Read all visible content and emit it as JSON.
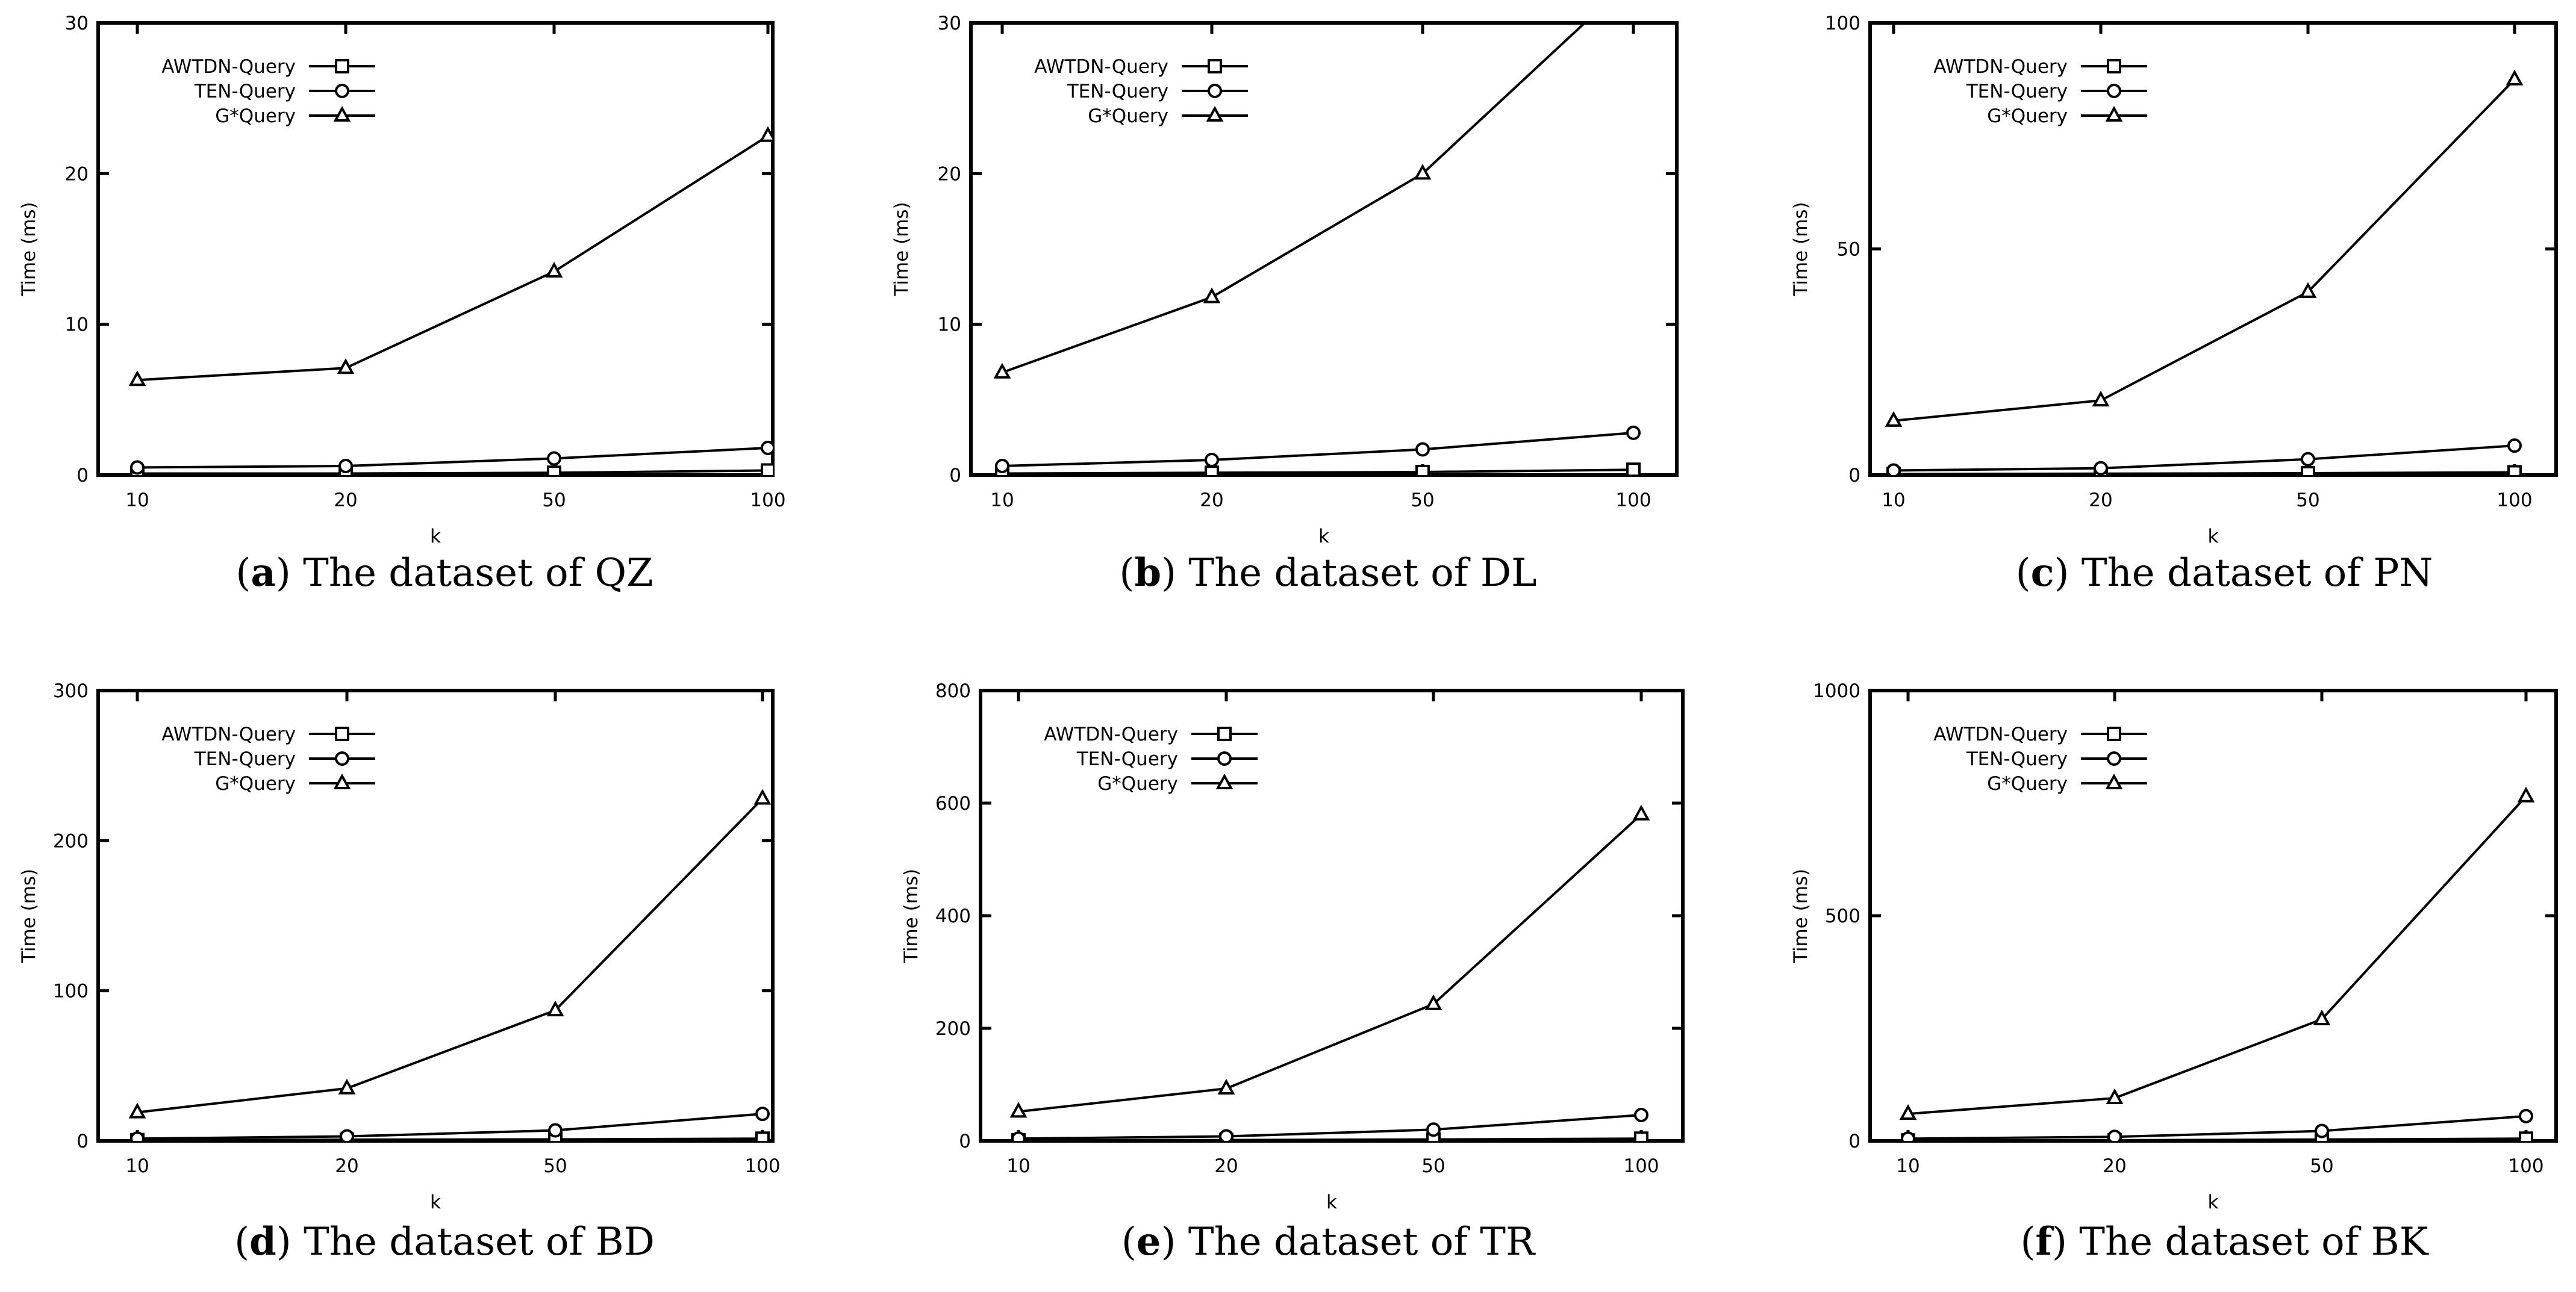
{
  "chart_data": [
    {
      "type": "line",
      "caption_letter": "a",
      "caption_text": "The dataset of QZ",
      "xlabel": "k",
      "ylabel": "Time (ms)",
      "categories": [
        "10",
        "20",
        "50",
        "100"
      ],
      "ylim": [
        0,
        30
      ],
      "yticks": [
        0,
        10,
        20,
        30
      ],
      "legend_position": "top-left",
      "series": [
        {
          "name": "AWTDN-Query",
          "marker": "square",
          "values": [
            0.1,
            0.1,
            0.15,
            0.3
          ]
        },
        {
          "name": "TEN-Query",
          "marker": "circle",
          "values": [
            0.5,
            0.6,
            1.1,
            1.8
          ]
        },
        {
          "name": "G*Query",
          "marker": "triangle",
          "values": [
            6.3,
            7.1,
            13.5,
            22.5
          ]
        }
      ]
    },
    {
      "type": "line",
      "caption_letter": "b",
      "caption_text": "The dataset of DL",
      "xlabel": "k",
      "ylabel": "Time (ms)",
      "categories": [
        "10",
        "20",
        "50",
        "100"
      ],
      "ylim": [
        0,
        30
      ],
      "yticks": [
        0,
        10,
        20,
        30
      ],
      "legend_position": "top-left",
      "series": [
        {
          "name": "AWTDN-Query",
          "marker": "square",
          "values": [
            0.1,
            0.15,
            0.2,
            0.35
          ]
        },
        {
          "name": "TEN-Query",
          "marker": "circle",
          "values": [
            0.6,
            1.0,
            1.7,
            2.8
          ]
        },
        {
          "name": "G*Query",
          "marker": "triangle",
          "values": [
            6.8,
            11.8,
            20.0,
            33.0
          ]
        }
      ]
    },
    {
      "type": "line",
      "caption_letter": "c",
      "caption_text": "The dataset of PN",
      "xlabel": "k",
      "ylabel": "Time (ms)",
      "categories": [
        "10",
        "20",
        "50",
        "100"
      ],
      "ylim": [
        0,
        100
      ],
      "yticks": [
        0,
        50,
        100
      ],
      "legend_position": "top-left",
      "series": [
        {
          "name": "AWTDN-Query",
          "marker": "square",
          "values": [
            0.2,
            0.3,
            0.4,
            0.6
          ]
        },
        {
          "name": "TEN-Query",
          "marker": "circle",
          "values": [
            1.0,
            1.5,
            3.5,
            6.5
          ]
        },
        {
          "name": "G*Query",
          "marker": "triangle",
          "values": [
            12.0,
            16.5,
            40.5,
            87.5
          ]
        }
      ]
    },
    {
      "type": "line",
      "caption_letter": "d",
      "caption_text": "The dataset of BD",
      "xlabel": "k",
      "ylabel": "Time (ms)",
      "categories": [
        "10",
        "20",
        "50",
        "100"
      ],
      "ylim": [
        0,
        300
      ],
      "yticks": [
        0,
        100,
        200,
        300
      ],
      "legend_position": "top-left",
      "series": [
        {
          "name": "AWTDN-Query",
          "marker": "square",
          "values": [
            0.5,
            0.8,
            1.0,
            1.5
          ]
        },
        {
          "name": "TEN-Query",
          "marker": "circle",
          "values": [
            1.5,
            3.0,
            7.0,
            18.0
          ]
        },
        {
          "name": "G*Query",
          "marker": "triangle",
          "values": [
            19.0,
            35.0,
            87.0,
            228.0
          ]
        }
      ]
    },
    {
      "type": "line",
      "caption_letter": "e",
      "caption_text": "The dataset of TR",
      "xlabel": "k",
      "ylabel": "Time (ms)",
      "categories": [
        "10",
        "20",
        "50",
        "100"
      ],
      "ylim": [
        0,
        800
      ],
      "yticks": [
        0,
        200,
        400,
        600,
        800
      ],
      "legend_position": "top-left",
      "series": [
        {
          "name": "AWTDN-Query",
          "marker": "square",
          "values": [
            1.0,
            1.5,
            2.5,
            4.0
          ]
        },
        {
          "name": "TEN-Query",
          "marker": "circle",
          "values": [
            4.0,
            8.0,
            20.0,
            46.0
          ]
        },
        {
          "name": "G*Query",
          "marker": "triangle",
          "values": [
            52.0,
            93.0,
            243.0,
            580.0
          ]
        }
      ]
    },
    {
      "type": "line",
      "caption_letter": "f",
      "caption_text": "The dataset of BK",
      "xlabel": "k",
      "ylabel": "Time (ms)",
      "categories": [
        "10",
        "20",
        "50",
        "100"
      ],
      "ylim": [
        0,
        1000
      ],
      "yticks": [
        0,
        500,
        1000
      ],
      "legend_position": "top-left",
      "series": [
        {
          "name": "AWTDN-Query",
          "marker": "square",
          "values": [
            1.0,
            1.5,
            3.0,
            5.0
          ]
        },
        {
          "name": "TEN-Query",
          "marker": "circle",
          "values": [
            5.0,
            9.0,
            22.0,
            55.0
          ]
        },
        {
          "name": "G*Query",
          "marker": "triangle",
          "values": [
            60.0,
            95.0,
            270.0,
            765.0
          ]
        }
      ]
    }
  ]
}
